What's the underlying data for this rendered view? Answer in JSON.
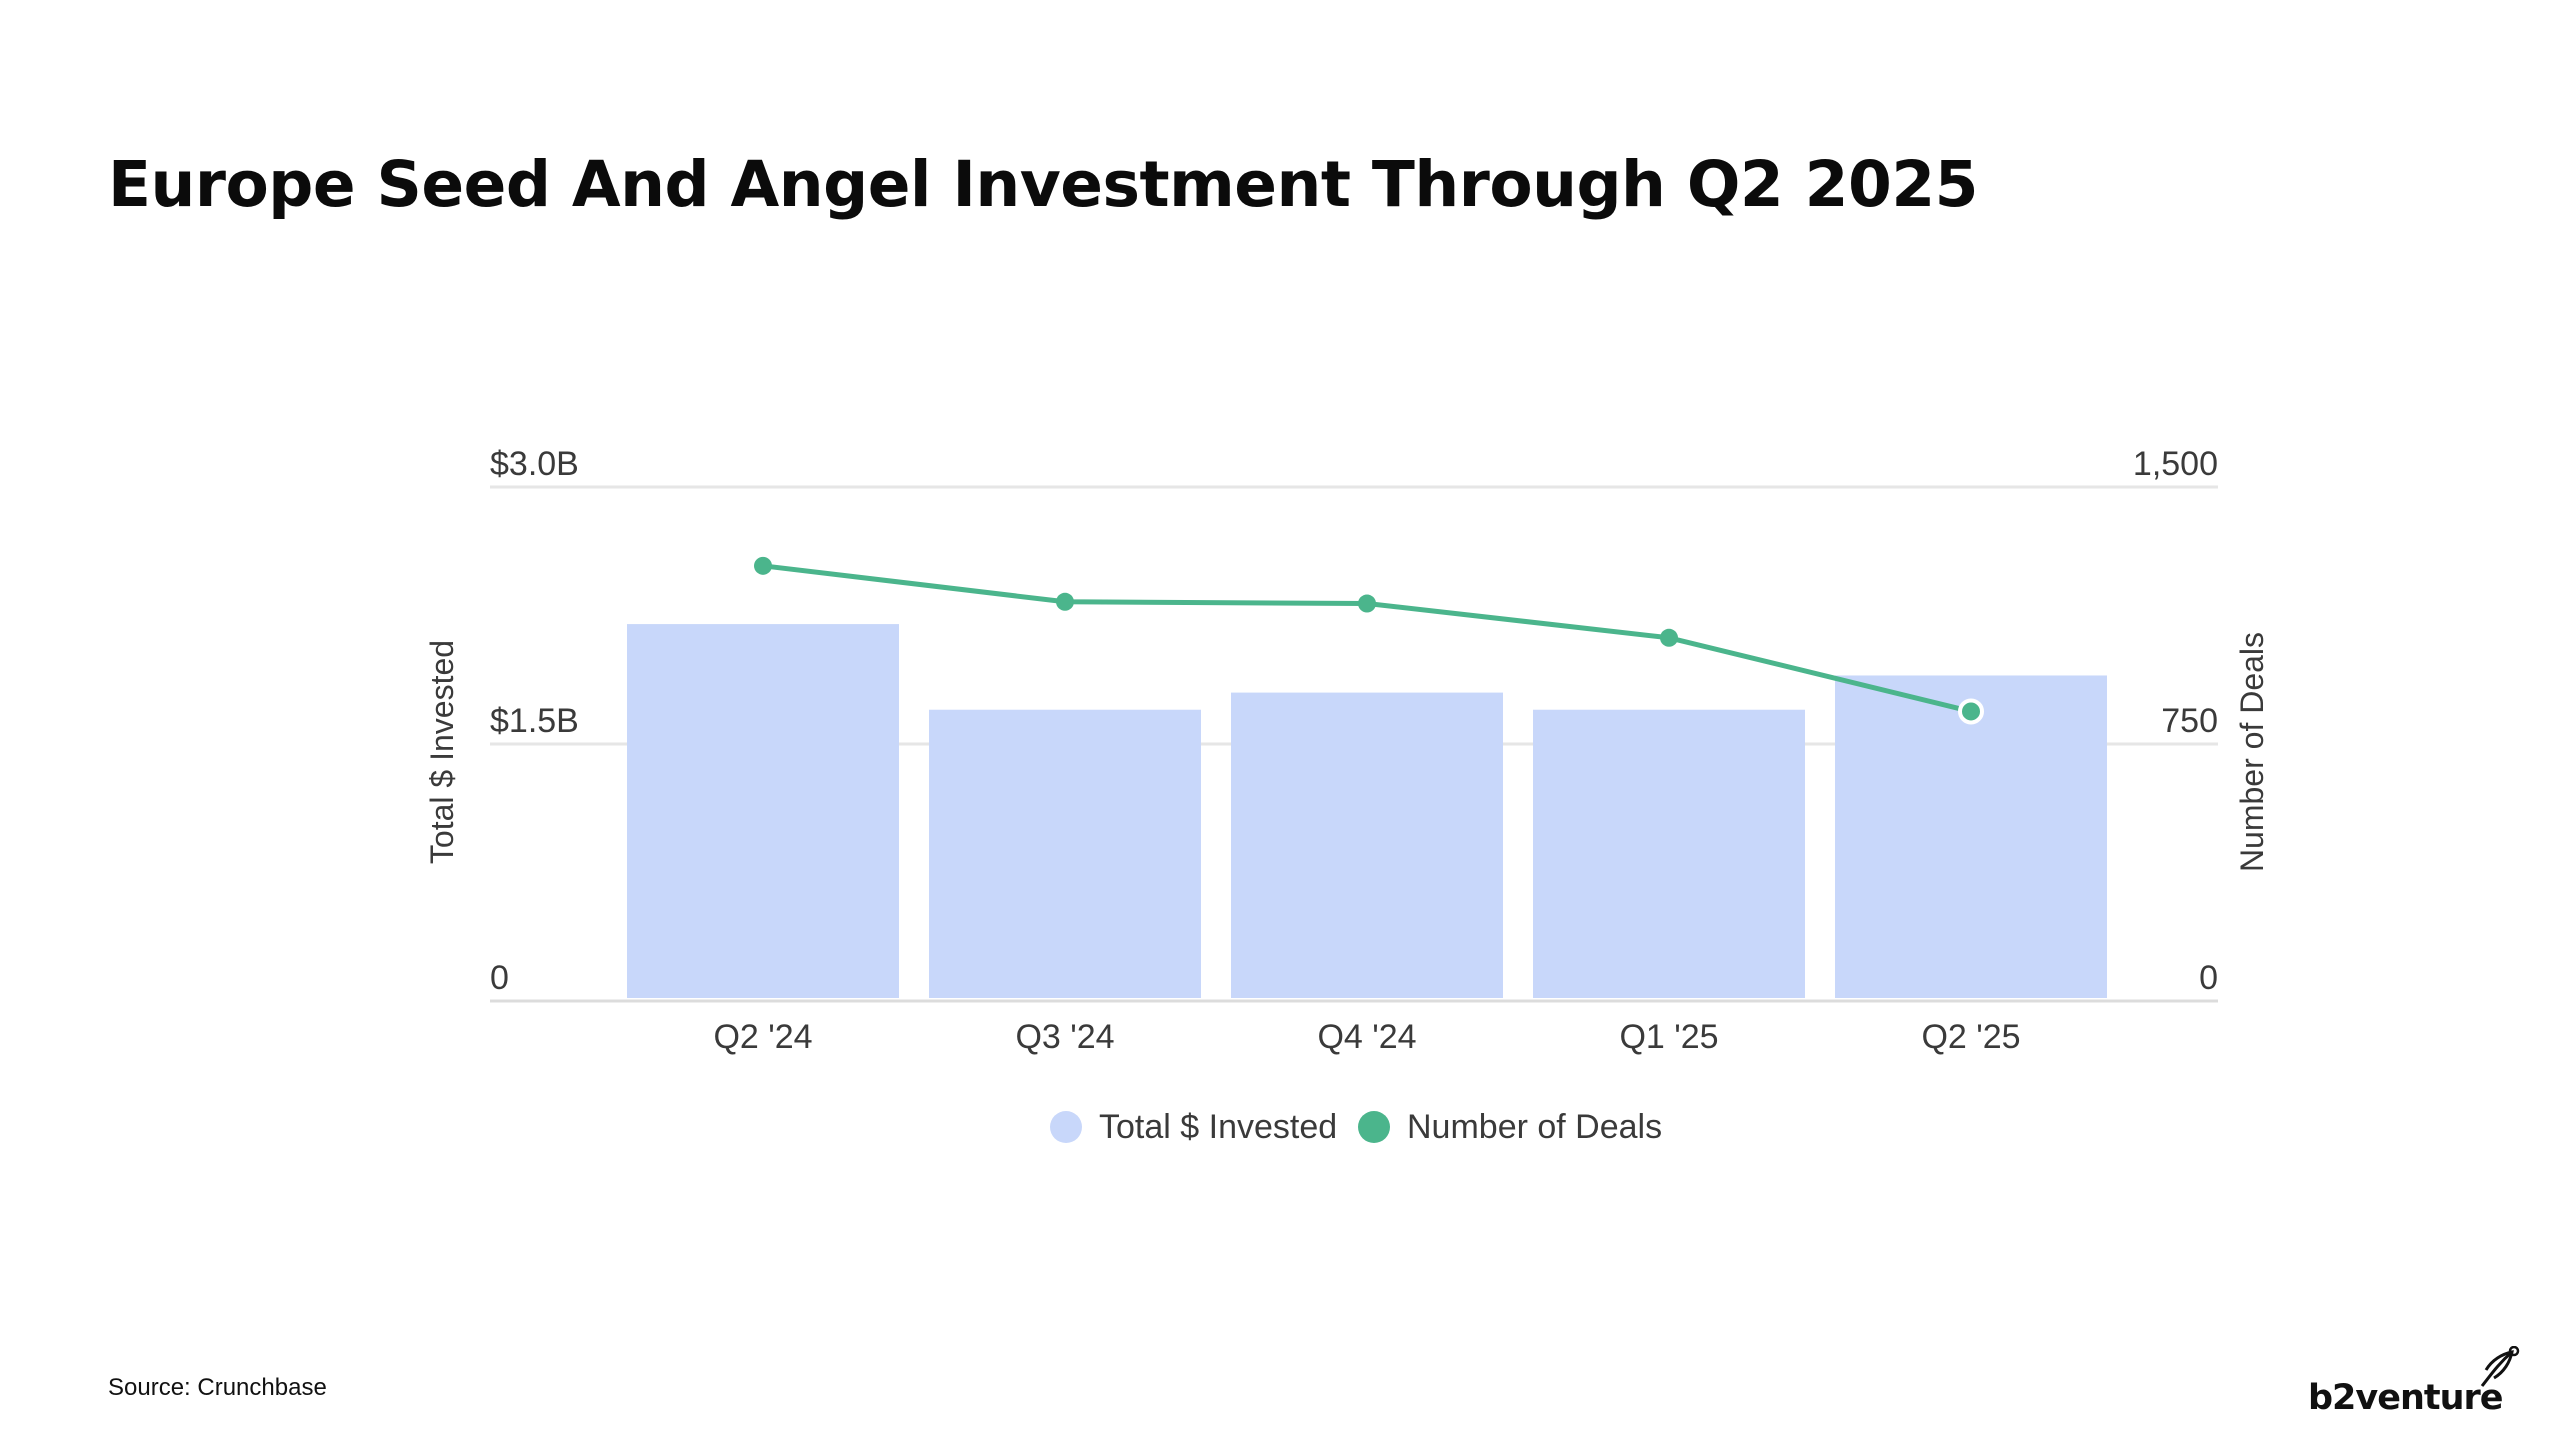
{
  "title": "Europe Seed And Angel Investment Through Q2 2025",
  "source": "Source: Crunchbase",
  "brand": {
    "logo_text": "b2venture"
  },
  "colors": {
    "bar": "#c8d7fa",
    "line": "#4bb58c",
    "grid": "#e6e6e6",
    "axis_text": "#3a3a3a"
  },
  "chart_data": {
    "type": "bar",
    "categories": [
      "Q2 '24",
      "Q3 '24",
      "Q4 '24",
      "Q1 '25",
      "Q2 '25"
    ],
    "series": [
      {
        "name": "Total $ Invested",
        "type": "bar",
        "axis": "left",
        "values": [
          2.2,
          1.7,
          1.8,
          1.7,
          1.9
        ]
      },
      {
        "name": "Number of Deals",
        "type": "line",
        "axis": "right",
        "values": [
          1270,
          1165,
          1160,
          1060,
          845
        ]
      }
    ],
    "ylabel": "Total $ Invested",
    "y2label": "Number of Deals",
    "ylim": [
      0,
      3.0
    ],
    "y2lim": [
      0,
      1500
    ],
    "yticks": [
      {
        "value": 0,
        "label": "0"
      },
      {
        "value": 1.5,
        "label": "$1.5B"
      },
      {
        "value": 3.0,
        "label": "$3.0B"
      }
    ],
    "y2ticks": [
      {
        "value": 0,
        "label": "0"
      },
      {
        "value": 750,
        "label": "750"
      },
      {
        "value": 1500,
        "label": "1,500"
      }
    ],
    "legend": [
      {
        "label": "Total $ Invested",
        "color": "#c8d7fa"
      },
      {
        "label": "Number of Deals",
        "color": "#4bb58c"
      }
    ],
    "legend_position": "bottom-center",
    "grid": true
  }
}
